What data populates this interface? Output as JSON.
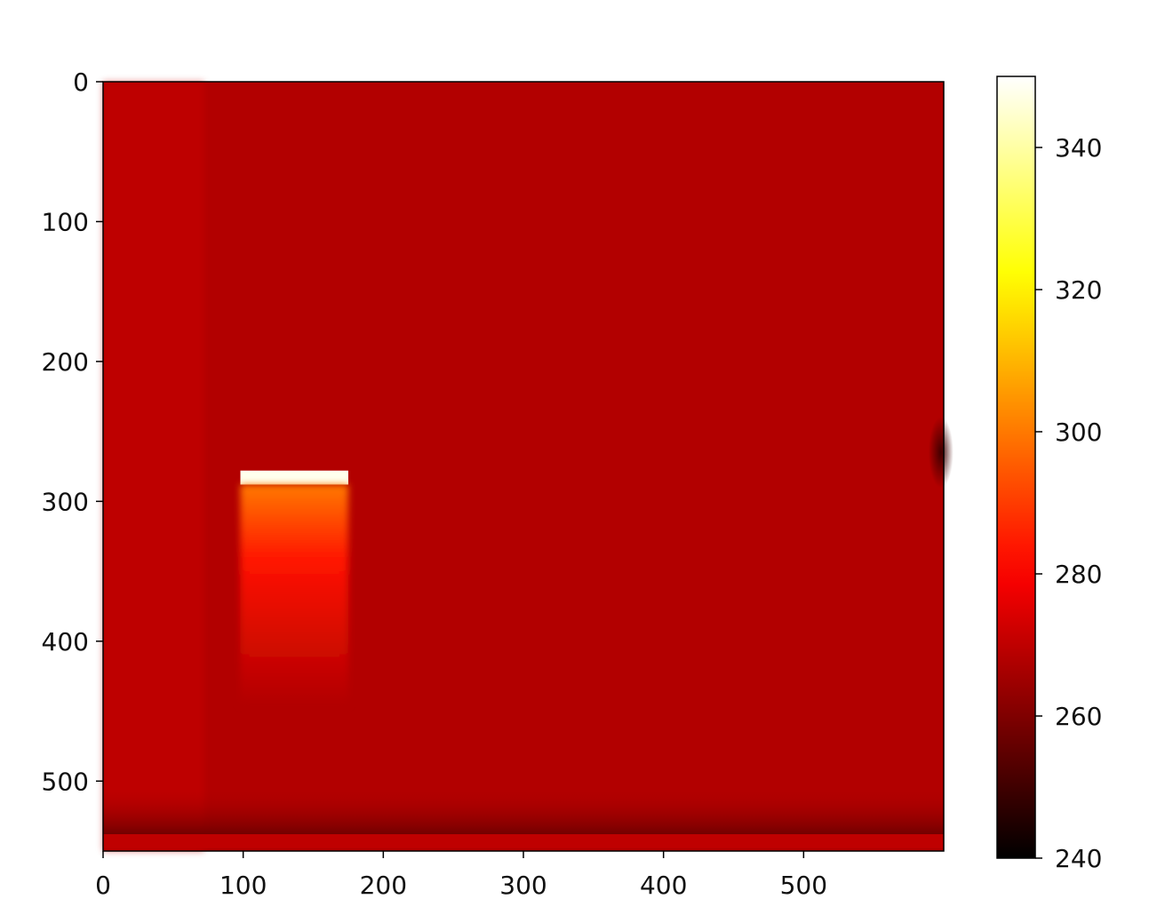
{
  "chart_data": {
    "type": "heatmap",
    "title": "",
    "xlabel": "",
    "ylabel": "",
    "xlim": [
      0,
      600
    ],
    "ylim": [
      550,
      0
    ],
    "x_ticks": [
      0,
      100,
      200,
      300,
      400,
      500
    ],
    "y_ticks": [
      0,
      100,
      200,
      300,
      400,
      500
    ],
    "x_tick_labels": [
      "0",
      "100",
      "200",
      "300",
      "400",
      "500"
    ],
    "y_tick_labels": [
      "0",
      "100",
      "200",
      "300",
      "400",
      "500"
    ],
    "colormap": "hot",
    "colorbar": {
      "vmin": 240,
      "vmax": 350,
      "ticks": [
        240,
        260,
        280,
        300,
        320,
        340
      ],
      "tick_labels": [
        "240",
        "260",
        "280",
        "300",
        "320",
        "340"
      ]
    },
    "background_level": 268,
    "features": [
      {
        "kind": "bright_edge",
        "x_range": [
          98,
          175
        ],
        "y_range": [
          278,
          288
        ],
        "value": 348
      },
      {
        "kind": "glow_region",
        "x_range": [
          98,
          175
        ],
        "y_range": [
          288,
          445
        ],
        "value_top": 300,
        "value_bottom": 272
      },
      {
        "kind": "dark_bottom_band",
        "y_range": [
          505,
          538
        ],
        "value": 258
      },
      {
        "kind": "bottom_strip",
        "y_range": [
          538,
          548
        ],
        "value": 270
      },
      {
        "kind": "dark_spot",
        "x": 598,
        "y": 265,
        "value": 250
      }
    ]
  }
}
